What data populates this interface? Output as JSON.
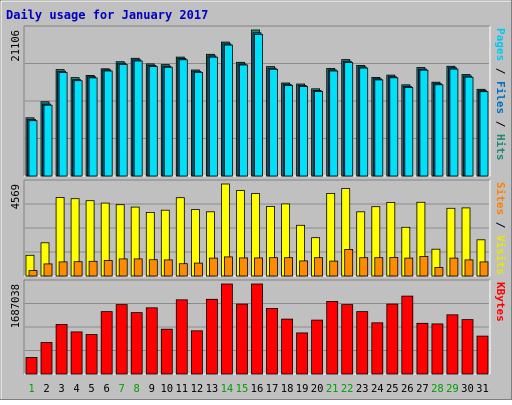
{
  "chart_data": {
    "type": "bar",
    "title": "Daily usage for January 2017",
    "days": [
      "1",
      "2",
      "3",
      "4",
      "5",
      "6",
      "7",
      "8",
      "9",
      "10",
      "11",
      "12",
      "13",
      "14",
      "15",
      "16",
      "17",
      "18",
      "19",
      "20",
      "21",
      "22",
      "23",
      "24",
      "25",
      "26",
      "27",
      "28",
      "29",
      "30",
      "31"
    ],
    "weekend_days": [
      "1",
      "7",
      "8",
      "14",
      "15",
      "21",
      "22",
      "28",
      "29"
    ],
    "panels": [
      {
        "id": "hits",
        "axis_max_label": "21106",
        "ylim": [
          0,
          21106
        ],
        "side_labels": [
          {
            "text": "Pages",
            "color": "#00c8f0"
          },
          {
            "text": " / ",
            "color": "#000000"
          },
          {
            "text": "Files",
            "color": "#0070c0"
          },
          {
            "text": " / ",
            "color": "#000000"
          },
          {
            "text": "Hits",
            "color": "#208878"
          }
        ],
        "series": [
          {
            "name": "Hits",
            "color": "#208a7a",
            "values": [
              8410,
              10730,
              15380,
              14230,
              14540,
              15500,
              16520,
              17020,
              16210,
              16100,
              17190,
              15320,
              17600,
              19350,
              16440,
              21106,
              15810,
              13450,
              13300,
              12600,
              15560,
              16820,
              15990,
              14250,
              14580,
              13180,
              15680,
              13560,
              15860,
              14670,
              12540
            ]
          },
          {
            "name": "Files",
            "color": "#0070c0",
            "values": [
              8170,
              10400,
              15130,
              13920,
              14340,
              15340,
              16300,
              16790,
              15990,
              15880,
              16980,
              15140,
              17360,
              19100,
              16210,
              20700,
              15590,
              13250,
              13100,
              12380,
              15340,
              16590,
              15770,
              14050,
              14360,
              12970,
              15460,
              13350,
              15640,
              14450,
              12330
            ]
          },
          {
            "name": "Pages",
            "color": "#00e0f8",
            "values": [
              8000,
              10240,
              14950,
              13780,
              14180,
              15180,
              16120,
              16620,
              15820,
              15720,
              16800,
              14980,
              17180,
              18920,
              16050,
              20470,
              15420,
              13090,
              12920,
              12220,
              15180,
              16410,
              15600,
              13890,
              14200,
              12800,
              15290,
              13190,
              15460,
              14280,
              12180
            ]
          }
        ]
      },
      {
        "id": "visits",
        "axis_max_label": "4569",
        "ylim": [
          0,
          4569
        ],
        "side_labels": [
          {
            "text": "Sites",
            "color": "#ff8000"
          },
          {
            "text": " / ",
            "color": "#000000"
          },
          {
            "text": "Visits",
            "color": "#e8e800"
          }
        ],
        "series": [
          {
            "name": "Visits",
            "color": "#ffff00",
            "values": [
              1030,
              1650,
              3900,
              3840,
              3740,
              3620,
              3540,
              3420,
              3160,
              3270,
              3890,
              3300,
              3190,
              4569,
              4240,
              4090,
              3450,
              3580,
              2520,
              1900,
              4100,
              4340,
              3190,
              3440,
              3650,
              2420,
              3660,
              1330,
              3360,
              3380,
              1800
            ]
          },
          {
            "name": "Sites",
            "color": "#ff8c00",
            "values": [
              270,
              600,
              700,
              710,
              730,
              770,
              850,
              850,
              810,
              800,
              610,
              640,
              890,
              950,
              900,
              900,
              910,
              910,
              750,
              910,
              740,
              1320,
              910,
              910,
              920,
              890,
              970,
              420,
              890,
              800,
              700
            ]
          }
        ]
      },
      {
        "id": "kbytes",
        "axis_max_label": "1687038",
        "ylim": [
          0,
          1687038
        ],
        "side_labels": [
          {
            "text": "KBytes",
            "color": "#ff0000"
          }
        ],
        "series": [
          {
            "name": "KBytes",
            "color": "#ff0000",
            "values": [
              310000,
              590000,
              930000,
              790000,
              740000,
              1170000,
              1300000,
              1150000,
              1240000,
              840000,
              1390000,
              810000,
              1400000,
              1687038,
              1310000,
              1687038,
              1230000,
              1030000,
              770000,
              1010000,
              1360000,
              1300000,
              1170000,
              960000,
              1310000,
              1460000,
              950000,
              940000,
              1110000,
              1020000,
              710000
            ]
          }
        ]
      }
    ]
  }
}
